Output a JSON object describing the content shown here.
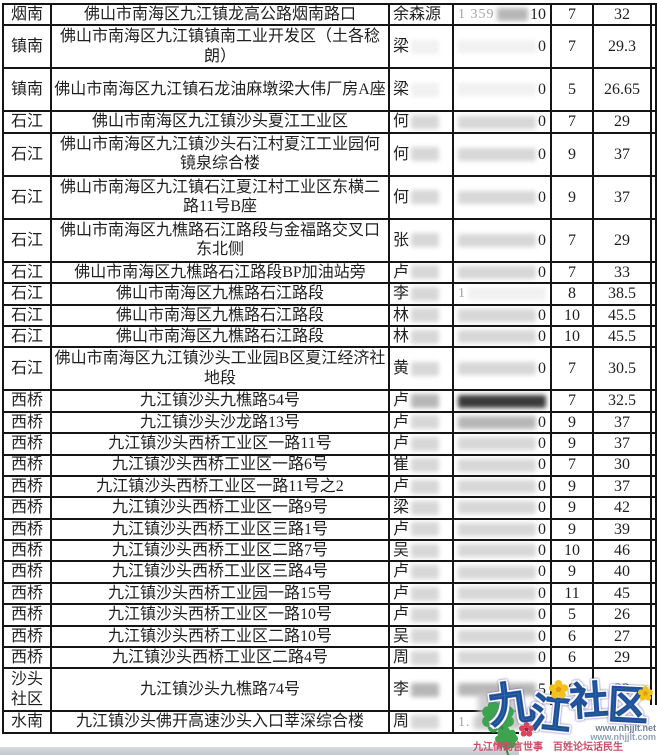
{
  "table": {
    "rows": [
      {
        "area": "烟南",
        "address": "佛山市南海区九江镇龙高公路烟南路口",
        "name": "余森源",
        "name_shade": null,
        "phone": {
          "prefix": "1 359",
          "suffix": "10",
          "shade": "mid"
        },
        "num1": "7",
        "num2": "32",
        "tall": false
      },
      {
        "area": "镇南",
        "address": "佛山市南海区九江镇镇南工业开发区（土各稔朗）",
        "name": "梁",
        "name_shade": "white",
        "phone": {
          "prefix": "",
          "suffix": "0",
          "shade": "white"
        },
        "num1": "7",
        "num2": "29.3",
        "tall": true
      },
      {
        "area": "镇南",
        "address": "佛山市南海区九江镇石龙油麻墩梁大伟厂房A座",
        "name": "梁",
        "name_shade": "white",
        "phone": {
          "prefix": "",
          "suffix": "0",
          "shade": "white"
        },
        "num1": "5",
        "num2": "26.65",
        "tall": true
      },
      {
        "area": "石江",
        "address": "佛山市南海区九江镇沙头夏江工业区",
        "name": "何",
        "name_shade": "light",
        "phone": {
          "prefix": "",
          "suffix": "0",
          "shade": "light"
        },
        "num1": "7",
        "num2": "29",
        "tall": false
      },
      {
        "area": "石江",
        "address": "佛山市南海区九江镇沙头石江村夏江工业园何镜泉综合楼",
        "name": "何",
        "name_shade": "light",
        "phone": {
          "prefix": "",
          "suffix": "0",
          "shade": "light"
        },
        "num1": "9",
        "num2": "37",
        "tall": true
      },
      {
        "area": "石江",
        "address": "佛山市南海区九江镇石江夏江村工业区东横二路11号B座",
        "name": "何",
        "name_shade": "light",
        "phone": {
          "prefix": "",
          "suffix": "0",
          "shade": "light"
        },
        "num1": "9",
        "num2": "37",
        "tall": true
      },
      {
        "area": "石江",
        "address": "佛山市南海区九樵路石江路段与金福路交叉口东北侧",
        "name": "张",
        "name_shade": "light",
        "phone": {
          "prefix": "",
          "suffix": "0",
          "shade": "light"
        },
        "num1": "7",
        "num2": "29",
        "tall": true
      },
      {
        "area": "石江",
        "address": "佛山市南海区九樵路石江路段BP加油站旁",
        "name": "卢",
        "name_shade": "light",
        "phone": {
          "prefix": "",
          "suffix": "0",
          "shade": "light"
        },
        "num1": "7",
        "num2": "33",
        "tall": false
      },
      {
        "area": "石江",
        "address": "佛山市南海区九樵路石江路段",
        "name": "李",
        "name_shade": "light",
        "phone": {
          "prefix": "1",
          "suffix": "",
          "shade": "white"
        },
        "num1": "8",
        "num2": "38.5",
        "tall": false
      },
      {
        "area": "石江",
        "address": "佛山市南海区九樵路石江路段",
        "name": "林",
        "name_shade": "light",
        "phone": {
          "prefix": "",
          "suffix": "0",
          "shade": "light"
        },
        "num1": "10",
        "num2": "45.5",
        "tall": false
      },
      {
        "area": "石江",
        "address": "佛山市南海区九樵路石江路段",
        "name": "林",
        "name_shade": "light",
        "phone": {
          "prefix": "",
          "suffix": "0",
          "shade": "light"
        },
        "num1": "10",
        "num2": "45.5",
        "tall": false
      },
      {
        "area": "石江",
        "address": "佛山市南海区九江镇沙头工业园B区夏江经济社地段",
        "name": "黄",
        "name_shade": "light",
        "phone": {
          "prefix": "",
          "suffix": "0",
          "shade": "light"
        },
        "num1": "7",
        "num2": "30.5",
        "tall": true
      },
      {
        "area": "西桥",
        "address": "九江镇沙头九樵路54号",
        "name": "卢",
        "name_shade": "mid",
        "phone": {
          "prefix": "",
          "suffix": "",
          "shade": "dark"
        },
        "num1": "7",
        "num2": "32.5",
        "tall": false
      },
      {
        "area": "西桥",
        "address": "九江镇沙头沙龙路13号",
        "name": "卢",
        "name_shade": "light",
        "phone": {
          "prefix": "",
          "suffix": "0",
          "shade": "mid"
        },
        "num1": "9",
        "num2": "37",
        "tall": false
      },
      {
        "area": "西桥",
        "address": "九江镇沙头西桥工业区一路11号",
        "name": "卢",
        "name_shade": "light",
        "phone": {
          "prefix": "",
          "suffix": "0",
          "shade": "light"
        },
        "num1": "9",
        "num2": "37",
        "tall": false
      },
      {
        "area": "西桥",
        "address": "九江镇沙头西桥工业区一路6号",
        "name": "崔",
        "name_shade": "light",
        "phone": {
          "prefix": "",
          "suffix": "0",
          "shade": "light"
        },
        "num1": "7",
        "num2": "30",
        "tall": false
      },
      {
        "area": "西桥",
        "address": "九江镇沙头西桥工业区一路11号之2",
        "name": "卢",
        "name_shade": "light",
        "phone": {
          "prefix": "",
          "suffix": "0",
          "shade": "light"
        },
        "num1": "9",
        "num2": "37",
        "tall": false
      },
      {
        "area": "西桥",
        "address": "九江镇沙头西桥工业区一路9号",
        "name": "梁",
        "name_shade": "light",
        "phone": {
          "prefix": "",
          "suffix": "0",
          "shade": "light"
        },
        "num1": "9",
        "num2": "42",
        "tall": false
      },
      {
        "area": "西桥",
        "address": "九江镇沙头西桥工业区三路1号",
        "name": "卢",
        "name_shade": "light",
        "phone": {
          "prefix": "",
          "suffix": "0",
          "shade": "light"
        },
        "num1": "9",
        "num2": "39",
        "tall": false
      },
      {
        "area": "西桥",
        "address": "九江镇沙头西桥工业区二路7号",
        "name": "吴",
        "name_shade": "light",
        "phone": {
          "prefix": "",
          "suffix": "0",
          "shade": "light"
        },
        "num1": "10",
        "num2": "46",
        "tall": false
      },
      {
        "area": "西桥",
        "address": "九江镇沙头西桥工业区三路4号",
        "name": "卢",
        "name_shade": "light",
        "phone": {
          "prefix": "",
          "suffix": "0",
          "shade": "light"
        },
        "num1": "9",
        "num2": "40",
        "tall": false
      },
      {
        "area": "西桥",
        "address": "九江镇沙头西桥工业园一路15号",
        "name": "卢",
        "name_shade": "light",
        "phone": {
          "prefix": "",
          "suffix": "0",
          "shade": "light"
        },
        "num1": "11",
        "num2": "45",
        "tall": false
      },
      {
        "area": "西桥",
        "address": "九江镇沙头西桥工业区一路10号",
        "name": "卢",
        "name_shade": "light",
        "phone": {
          "prefix": "",
          "suffix": "0",
          "shade": "light"
        },
        "num1": "5",
        "num2": "26",
        "tall": false
      },
      {
        "area": "西桥",
        "address": "九江镇沙头西桥工业区二路10号",
        "name": "吴",
        "name_shade": "light",
        "phone": {
          "prefix": "",
          "suffix": "0",
          "shade": "light"
        },
        "num1": "6",
        "num2": "27",
        "tall": false
      },
      {
        "area": "西桥",
        "address": "九江镇沙头西桥工业区二路4号",
        "name": "周",
        "name_shade": "light",
        "phone": {
          "prefix": "",
          "suffix": "0",
          "shade": "light"
        },
        "num1": "6",
        "num2": "29",
        "tall": false
      },
      {
        "area": "沙头社区",
        "address": "九江镇沙头九樵路74号",
        "name": "李",
        "name_shade": "mid",
        "phone": {
          "prefix": "",
          "suffix": "5",
          "shade": "mid"
        },
        "num1": "8",
        "num2": "32",
        "tall": true
      },
      {
        "area": "水南",
        "address": "九江镇沙头佛开高速沙头入口莘深综合楼",
        "name": "周",
        "name_shade": "light",
        "phone": {
          "prefix": "1.",
          "suffix": "",
          "shade": "light"
        },
        "num1": "",
        "num2": "",
        "tall": false
      }
    ]
  },
  "redaction_shades": {
    "white": "#f1f1f1",
    "light": "#d7d7d7",
    "mid": "#b7b7b7",
    "dark": "#3b3b3b"
  },
  "watermark": {
    "title": "九江社区",
    "url_line1": "www.nhjjlt.net",
    "url_line2": "www.nhjjlt.com",
    "slogan": "九江情韵言世事　百姓论坛话民生",
    "colors": {
      "char_blue": "#2f6cb3",
      "char_outline": "#1d4e96",
      "clover_green": "#3da44e",
      "flower_yellow": "#f2c21a",
      "flower_red": "#d9455f",
      "url1_gray": "#6e7f93",
      "url2_gray": "#8fa3b8",
      "slogan_red": "#c4506a"
    }
  }
}
